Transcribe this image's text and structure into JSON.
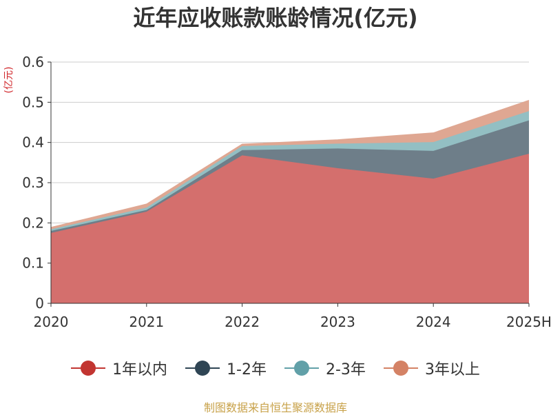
{
  "title": "近年应收账款账龄情况(亿元)",
  "y_unit": "(亿元)",
  "source": "制图数据来自恒生聚源数据库",
  "chart_data": {
    "type": "area",
    "stacked": true,
    "title": "近年应收账款账龄情况(亿元)",
    "ylabel": "(亿元)",
    "xlabel": "",
    "categories": [
      "2020",
      "2021",
      "2022",
      "2023",
      "2024",
      "2025H"
    ],
    "ylim": [
      0,
      0.6
    ],
    "yticks": [
      0,
      0.1,
      0.2,
      0.3,
      0.4,
      0.5,
      0.6
    ],
    "ytick_labels": [
      "0",
      "0.1",
      "0.2",
      "0.3",
      "0.4",
      "0.5",
      "0.6"
    ],
    "grid": true,
    "legend_position": "bottom",
    "series": [
      {
        "name": "1年以内",
        "values": [
          0.175,
          0.228,
          0.368,
          0.336,
          0.31,
          0.372
        ],
        "color": "#c23531",
        "fill": "#d46f6d"
      },
      {
        "name": "1-2年",
        "values": [
          0.005,
          0.004,
          0.013,
          0.049,
          0.069,
          0.083
        ],
        "color": "#2f4554",
        "fill": "#6e7e89"
      },
      {
        "name": "2-3年",
        "values": [
          0.004,
          0.006,
          0.01,
          0.012,
          0.022,
          0.023
        ],
        "color": "#61a0a8",
        "fill": "#93bfc3"
      },
      {
        "name": "3年以上",
        "values": [
          0.005,
          0.009,
          0.005,
          0.01,
          0.023,
          0.027
        ],
        "color": "#d48265",
        "fill": "#dfa792"
      }
    ]
  }
}
